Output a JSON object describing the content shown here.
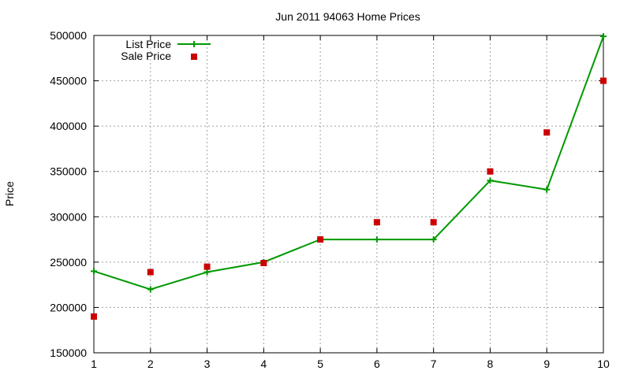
{
  "chart_data": {
    "type": "line",
    "title": "Jun 2011 94063 Home Prices",
    "xlabel": "",
    "ylabel": "Price",
    "x": [
      1,
      2,
      3,
      4,
      5,
      6,
      7,
      8,
      9,
      10
    ],
    "xlim": [
      1,
      10
    ],
    "ylim": [
      150000,
      500000
    ],
    "xticks": [
      1,
      2,
      3,
      4,
      5,
      6,
      7,
      8,
      9,
      10
    ],
    "yticks": [
      150000,
      200000,
      250000,
      300000,
      350000,
      400000,
      450000,
      500000
    ],
    "grid": true,
    "legend_position": "top-left",
    "series": [
      {
        "name": "List Price",
        "style": "line-with-plus-markers",
        "color": "#009900",
        "values": [
          240000,
          220000,
          239000,
          250000,
          275000,
          275000,
          275000,
          340000,
          330000,
          499000
        ]
      },
      {
        "name": "Sale Price",
        "style": "square-markers",
        "color": "#cc0000",
        "values": [
          190000,
          239000,
          245000,
          249000,
          275000,
          294000,
          294000,
          350000,
          393000,
          450000
        ]
      }
    ]
  }
}
